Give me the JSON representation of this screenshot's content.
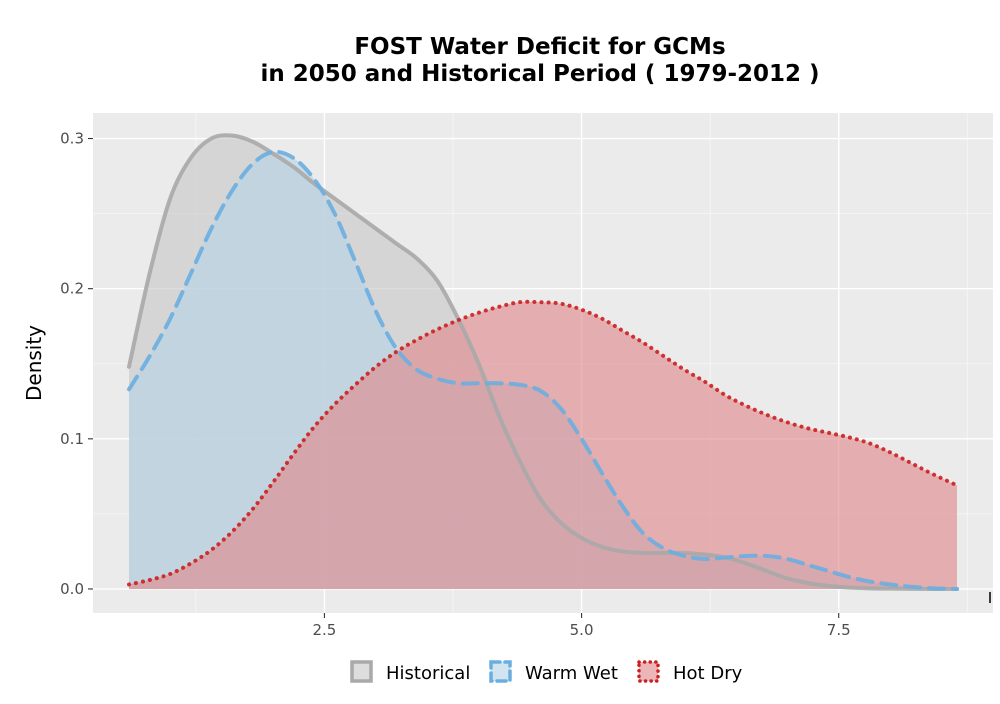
{
  "chart_data": {
    "type": "area",
    "title": "FOST  Water Deficit for GCMs",
    "subtitle": "in 2050 and Historical Period ( 1979-2012 )",
    "xlabel": "",
    "ylabel": "Density",
    "xlim": [
      0.25,
      9.0
    ],
    "ylim": [
      -0.016,
      0.317
    ],
    "x_ticks": [
      2.5,
      5.0,
      7.5
    ],
    "x_tick_labels": [
      "2.5",
      "5.0",
      "7.5"
    ],
    "y_ticks": [
      0.0,
      0.1,
      0.2,
      0.3
    ],
    "y_tick_labels": [
      "0.0",
      "0.1",
      "0.2",
      "0.3"
    ],
    "grid": true,
    "legend_position": "bottom",
    "series": [
      {
        "name": "Historical",
        "line_style": "solid",
        "line_color": "#a9a9a9",
        "fill_color": "#c8c8c8",
        "x": [
          0.6,
          0.8,
          1.0,
          1.2,
          1.4,
          1.6,
          1.8,
          2.0,
          2.2,
          2.4,
          2.6,
          2.8,
          3.0,
          3.2,
          3.4,
          3.6,
          3.8,
          4.0,
          4.2,
          4.4,
          4.6,
          4.8,
          5.0,
          5.2,
          5.4,
          5.6,
          5.8,
          6.0,
          6.2,
          6.4,
          6.6,
          6.8,
          7.0,
          7.2,
          7.4,
          7.6,
          7.8,
          8.0,
          8.2,
          8.4,
          8.65
        ],
        "values": [
          0.148,
          0.21,
          0.26,
          0.287,
          0.3,
          0.302,
          0.298,
          0.29,
          0.281,
          0.27,
          0.26,
          0.25,
          0.24,
          0.23,
          0.22,
          0.205,
          0.18,
          0.15,
          0.115,
          0.085,
          0.06,
          0.044,
          0.034,
          0.028,
          0.025,
          0.024,
          0.024,
          0.024,
          0.023,
          0.021,
          0.017,
          0.012,
          0.007,
          0.004,
          0.002,
          0.001,
          0.0004,
          0.0002,
          0.0001,
          0.0,
          0.0
        ]
      },
      {
        "name": "Warm Wet",
        "line_style": "dashed",
        "line_color": "#6aaee0",
        "fill_color": "#b4d3e6",
        "x": [
          0.6,
          0.8,
          1.0,
          1.2,
          1.4,
          1.6,
          1.8,
          2.0,
          2.2,
          2.4,
          2.6,
          2.8,
          3.0,
          3.2,
          3.4,
          3.6,
          3.8,
          4.0,
          4.2,
          4.4,
          4.6,
          4.8,
          5.0,
          5.2,
          5.4,
          5.6,
          5.8,
          6.0,
          6.2,
          6.4,
          6.6,
          6.8,
          7.0,
          7.2,
          7.4,
          7.6,
          7.8,
          8.0,
          8.2,
          8.4,
          8.65
        ],
        "values": [
          0.133,
          0.155,
          0.18,
          0.21,
          0.24,
          0.265,
          0.283,
          0.291,
          0.287,
          0.273,
          0.25,
          0.218,
          0.185,
          0.16,
          0.146,
          0.14,
          0.137,
          0.137,
          0.137,
          0.136,
          0.132,
          0.12,
          0.1,
          0.077,
          0.055,
          0.037,
          0.027,
          0.022,
          0.02,
          0.021,
          0.022,
          0.022,
          0.02,
          0.016,
          0.012,
          0.008,
          0.005,
          0.003,
          0.0015,
          0.0005,
          0.0
        ]
      },
      {
        "name": "Hot Dry",
        "line_style": "dotted",
        "line_color": "#cc1f1f",
        "fill_color": "#e0878a",
        "x": [
          0.6,
          0.8,
          1.0,
          1.2,
          1.4,
          1.6,
          1.8,
          2.0,
          2.2,
          2.4,
          2.6,
          2.8,
          3.0,
          3.2,
          3.4,
          3.6,
          3.8,
          4.0,
          4.2,
          4.4,
          4.6,
          4.8,
          5.0,
          5.2,
          5.4,
          5.6,
          5.8,
          6.0,
          6.2,
          6.4,
          6.6,
          6.8,
          7.0,
          7.2,
          7.4,
          7.6,
          7.8,
          8.0,
          8.2,
          8.4,
          8.65
        ],
        "values": [
          0.003,
          0.006,
          0.01,
          0.017,
          0.026,
          0.038,
          0.053,
          0.071,
          0.09,
          0.108,
          0.123,
          0.136,
          0.148,
          0.158,
          0.166,
          0.173,
          0.179,
          0.184,
          0.188,
          0.191,
          0.191,
          0.19,
          0.186,
          0.18,
          0.172,
          0.164,
          0.155,
          0.146,
          0.138,
          0.129,
          0.122,
          0.116,
          0.111,
          0.107,
          0.104,
          0.101,
          0.097,
          0.091,
          0.084,
          0.077,
          0.069
        ]
      }
    ]
  }
}
